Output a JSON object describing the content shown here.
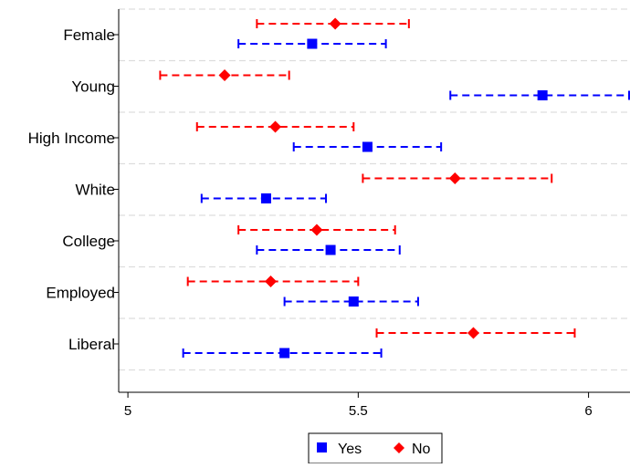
{
  "chart_data": {
    "type": "scatter",
    "subtype": "dot-and-whisker",
    "orientation": "horizontal",
    "categories": [
      "Female",
      "Young",
      "High Income",
      "White",
      "College",
      "Employed",
      "Liberal"
    ],
    "x_ticks": [
      "5",
      "5.5",
      "6"
    ],
    "xlim": [
      4.98,
      6.09
    ],
    "grid": "horizontal-dashed-separators",
    "legend_position": "bottom-center",
    "series": [
      {
        "name": "No",
        "color": "#ff0000",
        "marker": "diamond",
        "points": [
          {
            "category": "Female",
            "estimate": 5.45,
            "low": 5.28,
            "high": 5.61
          },
          {
            "category": "Young",
            "estimate": 5.21,
            "low": 5.07,
            "high": 5.35
          },
          {
            "category": "High Income",
            "estimate": 5.32,
            "low": 5.15,
            "high": 5.49
          },
          {
            "category": "White",
            "estimate": 5.71,
            "low": 5.51,
            "high": 5.92
          },
          {
            "category": "College",
            "estimate": 5.41,
            "low": 5.24,
            "high": 5.58
          },
          {
            "category": "Employed",
            "estimate": 5.31,
            "low": 5.13,
            "high": 5.5
          },
          {
            "category": "Liberal",
            "estimate": 5.75,
            "low": 5.54,
            "high": 5.97
          }
        ]
      },
      {
        "name": "Yes",
        "color": "#0000ff",
        "marker": "square",
        "points": [
          {
            "category": "Female",
            "estimate": 5.4,
            "low": 5.24,
            "high": 5.56
          },
          {
            "category": "Young",
            "estimate": 5.9,
            "low": 5.7,
            "high": 6.09
          },
          {
            "category": "High Income",
            "estimate": 5.52,
            "low": 5.36,
            "high": 5.68
          },
          {
            "category": "White",
            "estimate": 5.3,
            "low": 5.16,
            "high": 5.43
          },
          {
            "category": "College",
            "estimate": 5.44,
            "low": 5.28,
            "high": 5.59
          },
          {
            "category": "Employed",
            "estimate": 5.49,
            "low": 5.34,
            "high": 5.63
          },
          {
            "category": "Liberal",
            "estimate": 5.34,
            "low": 5.12,
            "high": 5.55
          }
        ]
      }
    ],
    "legend": [
      {
        "label": "Yes",
        "color": "#0000ff",
        "marker": "square"
      },
      {
        "label": "No",
        "color": "#ff0000",
        "marker": "diamond"
      }
    ]
  }
}
